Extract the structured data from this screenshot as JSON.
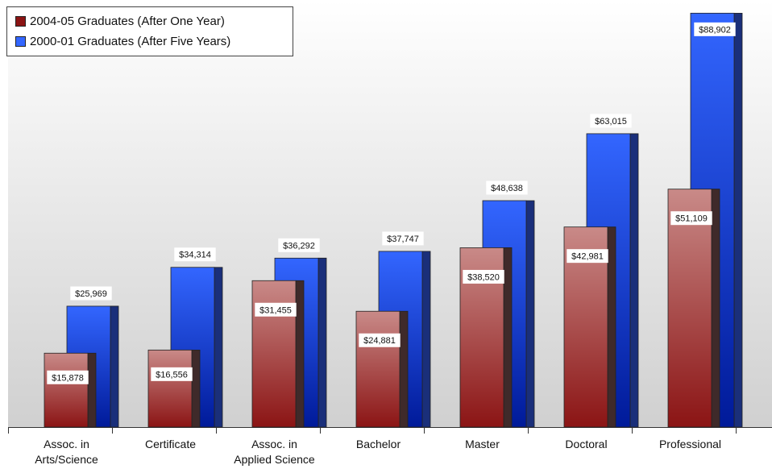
{
  "chart_data": {
    "type": "bar",
    "style": "3d-clustered",
    "categories": [
      [
        "Assoc. in",
        "Arts/Science"
      ],
      [
        "Certificate"
      ],
      [
        "Assoc. in",
        "Applied Science"
      ],
      [
        "Bachelor"
      ],
      [
        "Master"
      ],
      [
        "Doctoral"
      ],
      [
        "Professional"
      ]
    ],
    "series": [
      {
        "name": "2004-05 Graduates (After One Year)",
        "values": [
          15878,
          16556,
          31455,
          24881,
          38520,
          42981,
          51109
        ],
        "labels": [
          "$15,878",
          "$16,556",
          "$31,455",
          "$24,881",
          "$38,520",
          "$42,981",
          "$51,109"
        ],
        "color_top": "#c98a88",
        "color_bottom": "#8b1414",
        "side_color": "#3f2a2a"
      },
      {
        "name": "2000-01 Graduates (After Five Years)",
        "values": [
          25969,
          34314,
          36292,
          37747,
          48638,
          63015,
          88902
        ],
        "labels": [
          "$25,969",
          "$34,314",
          "$36,292",
          "$37,747",
          "$48,638",
          "$63,015",
          "$88,902"
        ],
        "color_top": "#3366ff",
        "color_bottom": "#001a99",
        "side_color": "#1a2f7a"
      }
    ],
    "ylim": [
      0,
      90000
    ],
    "grid": false,
    "legend_position": "top-left",
    "background_gradient": [
      "#ffffff",
      "#d0d0d0"
    ]
  }
}
